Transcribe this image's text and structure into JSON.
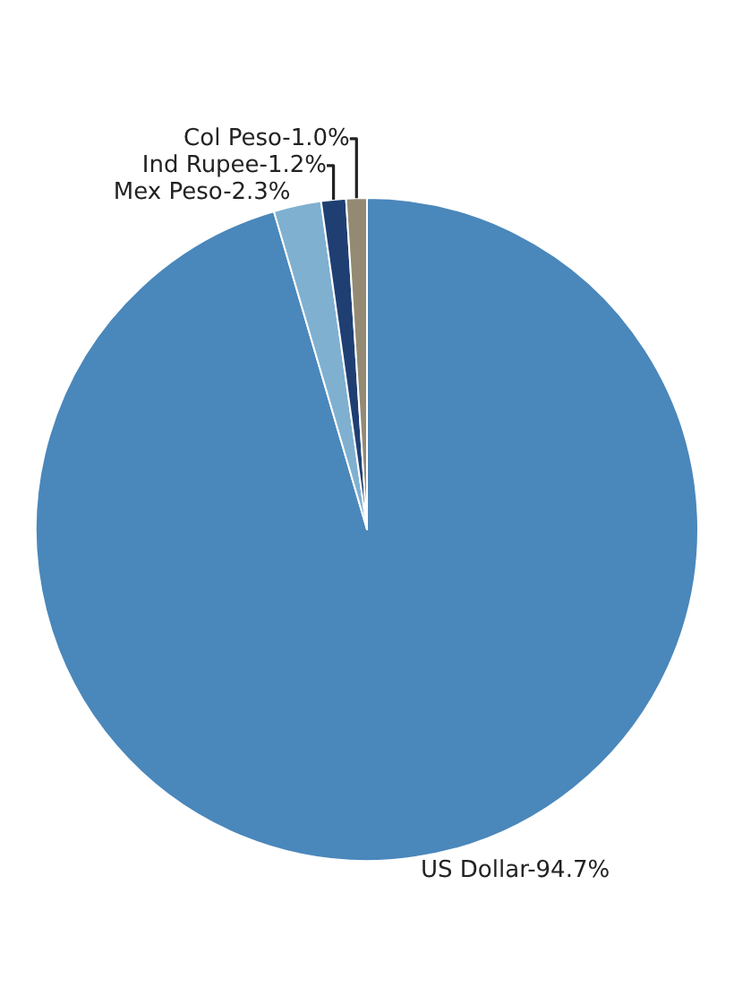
{
  "chart_data": {
    "type": "pie",
    "categories": [
      "US Dollar-94.7%",
      "Mex Peso-2.3%",
      "Ind Rupee-1.2%",
      "Col Peso-1.0%"
    ],
    "values": [
      94.7,
      2.3,
      1.2,
      1.0
    ],
    "colors": [
      "#4a87bb",
      "#7fb0d0",
      "#1f3f73",
      "#948a74"
    ],
    "legend": false
  }
}
